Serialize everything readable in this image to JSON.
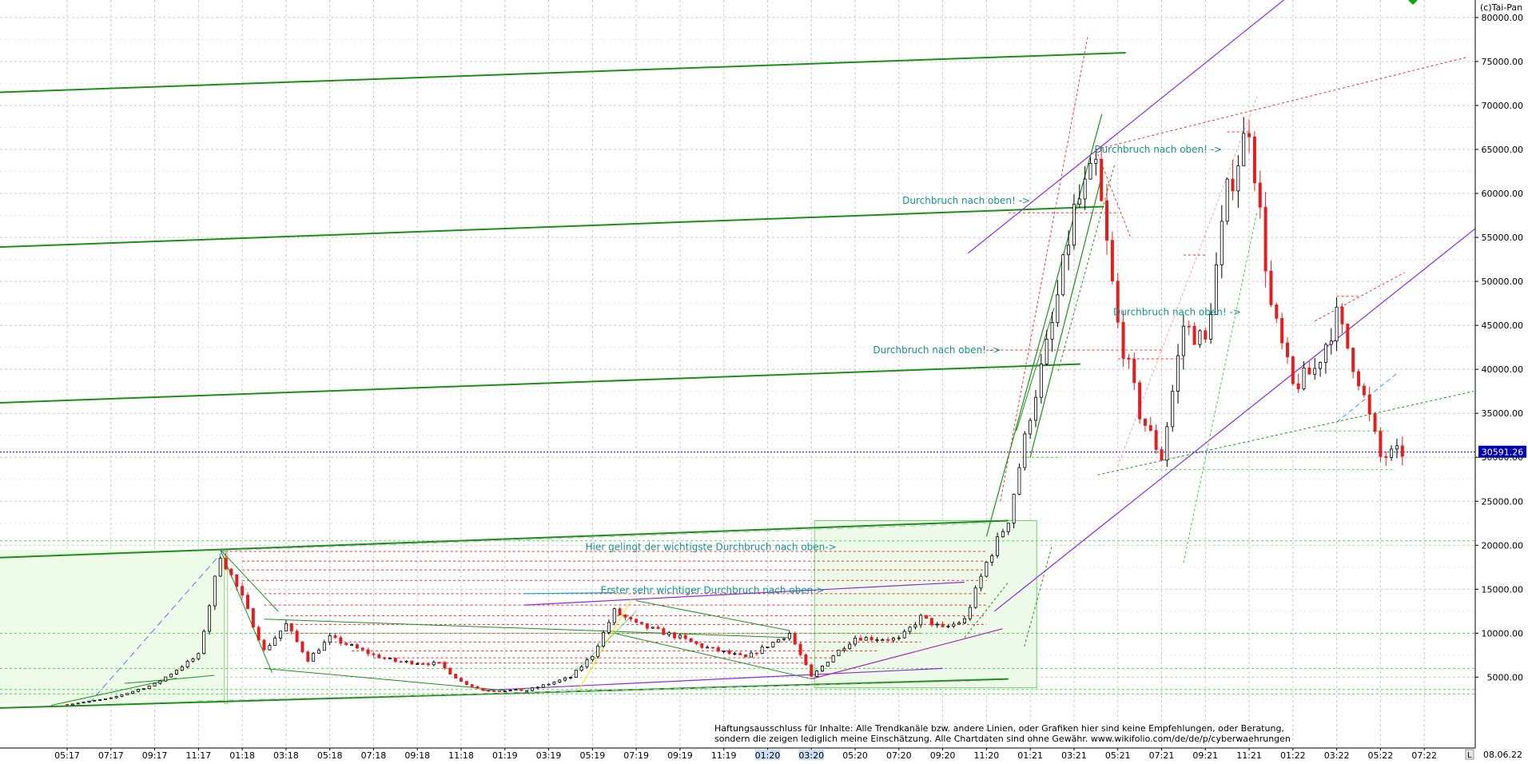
{
  "header": {
    "copyright": "(c)Tai-Pan"
  },
  "footer": {
    "last_date": "08.06.22",
    "corner_label": "L",
    "disclaimer_line1": "Haftungsausschluss für Inhalte: Alle Trendkanäle bzw. andere Linien, oder Grafiken hier sind keine Empfehlungen, oder Beratung,",
    "disclaimer_line2": "sondern die zeigen lediglich meine  Einschätzung. Alle Chartdaten sind ohne Gewähr.  www.wikifolio.com/de/de/p/cyberwaehrungen"
  },
  "chart_data": {
    "type": "candlestick",
    "title": "",
    "xlabel": "",
    "ylabel": "",
    "ylim": [
      0,
      85000
    ],
    "y_scale": "linear",
    "y_ticks": [
      5000,
      10000,
      15000,
      20000,
      25000,
      30000,
      35000,
      40000,
      45000,
      50000,
      55000,
      60000,
      65000,
      70000,
      75000,
      80000
    ],
    "y_tick_labels": [
      "5000.00",
      "10000.00",
      "15000.00",
      "20000.00",
      "25000.00",
      "30000.00",
      "35000.00",
      "40000.00",
      "45000.00",
      "50000.00",
      "55000.00",
      "60000.00",
      "65000.00",
      "70000.00",
      "75000.00",
      "80000.00"
    ],
    "x_tick_labels": [
      "05:17",
      "07:17",
      "09:17",
      "11:17",
      "01:18",
      "03:18",
      "05:18",
      "07:18",
      "09:18",
      "11:18",
      "01:19",
      "03:19",
      "05:19",
      "07:19",
      "09:19",
      "11:19",
      "01:20",
      "03:20",
      "05:20",
      "07:20",
      "09:20",
      "11:20",
      "01:21",
      "03:21",
      "05:21",
      "07:21",
      "09:21",
      "11:21",
      "01:22",
      "03:22",
      "05:22",
      "07:22"
    ],
    "grid": true,
    "current_price": 30591.26,
    "current_price_label": "30591.26",
    "series": [
      {
        "points": [
          [
            "2017-05",
            1900
          ],
          [
            "2017-07",
            2600
          ],
          [
            "2017-09",
            4200
          ],
          [
            "2017-11",
            7500
          ],
          [
            "2017-12",
            19000
          ],
          [
            "2018-01",
            14000
          ],
          [
            "2018-02",
            8000
          ],
          [
            "2018-03",
            11000
          ],
          [
            "2018-04",
            7000
          ],
          [
            "2018-05",
            9500
          ],
          [
            "2018-07",
            7500
          ],
          [
            "2018-08",
            6800
          ],
          [
            "2018-10",
            6500
          ],
          [
            "2018-11",
            4500
          ],
          [
            "2018-12",
            3500
          ],
          [
            "2019-02",
            3500
          ],
          [
            "2019-04",
            5000
          ],
          [
            "2019-05",
            7500
          ],
          [
            "2019-06",
            12500
          ],
          [
            "2019-07",
            11000
          ],
          [
            "2019-09",
            9500
          ],
          [
            "2019-10",
            8500
          ],
          [
            "2019-12",
            7200
          ],
          [
            "2020-02",
            10000
          ],
          [
            "2020-03",
            5000
          ],
          [
            "2020-04",
            7500
          ],
          [
            "2020-05",
            9500
          ],
          [
            "2020-07",
            9300
          ],
          [
            "2020-08",
            11800
          ],
          [
            "2020-09",
            10500
          ],
          [
            "2020-10",
            11500
          ],
          [
            "2020-11",
            18000
          ],
          [
            "2020-12",
            23000
          ],
          [
            "2021-01",
            35000
          ],
          [
            "2021-02",
            45000
          ],
          [
            "2021-03",
            58000
          ],
          [
            "2021-04",
            63000
          ],
          [
            "2021-05",
            45000
          ],
          [
            "2021-06",
            35000
          ],
          [
            "2021-07",
            30000
          ],
          [
            "2021-08",
            45000
          ],
          [
            "2021-09",
            43000
          ],
          [
            "2021-10",
            60000
          ],
          [
            "2021-11",
            68000
          ],
          [
            "2021-12",
            47000
          ],
          [
            "2022-01",
            38000
          ],
          [
            "2022-02",
            40000
          ],
          [
            "2022-03",
            46000
          ],
          [
            "2022-04",
            39000
          ],
          [
            "2022-05",
            30000
          ],
          [
            "2022-06",
            30591
          ]
        ]
      }
    ],
    "annotations": [
      {
        "text": "Durchbruch nach oben! ->",
        "date": "2021-04",
        "price": 65000
      },
      {
        "text": "Durchbruch nach oben! ->",
        "date": "2021-01",
        "price": 59200
      },
      {
        "text": "Durchbruch nach oben! ->",
        "date": "2020-11",
        "price": 42200
      },
      {
        "text": "Durchbruch nach oben! ->",
        "date": "2021-11",
        "price": 46500
      },
      {
        "text": "Hier gelingt der wichtigste Durchbruch nach oben->",
        "date": "2020-04",
        "price": 19800
      },
      {
        "text": "Erster sehr wichtiger Durchbruch nach oben->",
        "date": "2020-04",
        "price": 14900
      }
    ],
    "legend": "none"
  }
}
